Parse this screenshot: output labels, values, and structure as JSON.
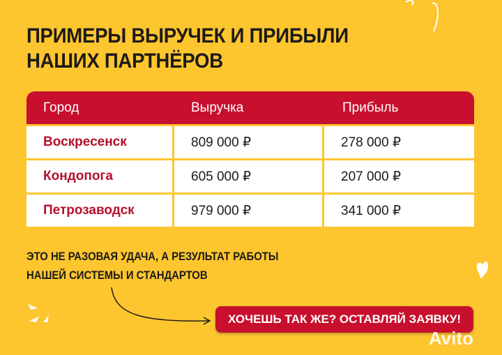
{
  "title": [
    "ПРИМЕРЫ ВЫРУЧЕК И ПРИБЫЛИ",
    "НАШИХ ПАРТНЁРОВ"
  ],
  "table": {
    "headers": [
      "Город",
      "Выручка",
      "Прибыль"
    ],
    "rows": [
      [
        "Воскресенск",
        "809 000 ₽",
        "278 000 ₽"
      ],
      [
        "Кондопога",
        "605 000 ₽",
        "207 000 ₽"
      ],
      [
        "Петрозаводск",
        "979 000 ₽",
        "341 000 ₽"
      ]
    ]
  },
  "note": [
    "ЭТО НЕ РАЗОВАЯ УДАЧА, А РЕЗУЛЬТАТ РАБОТЫ",
    "НАШЕЙ СИСТЕМЫ И СТАНДАРТОВ"
  ],
  "cta": "ХОЧЕШЬ ТАК ЖЕ? ОСТАВЛЯЙ ЗАЯВКУ!",
  "watermark": "Avito",
  "colors": {
    "background": "#fdc62f",
    "accent": "#c8102e"
  }
}
